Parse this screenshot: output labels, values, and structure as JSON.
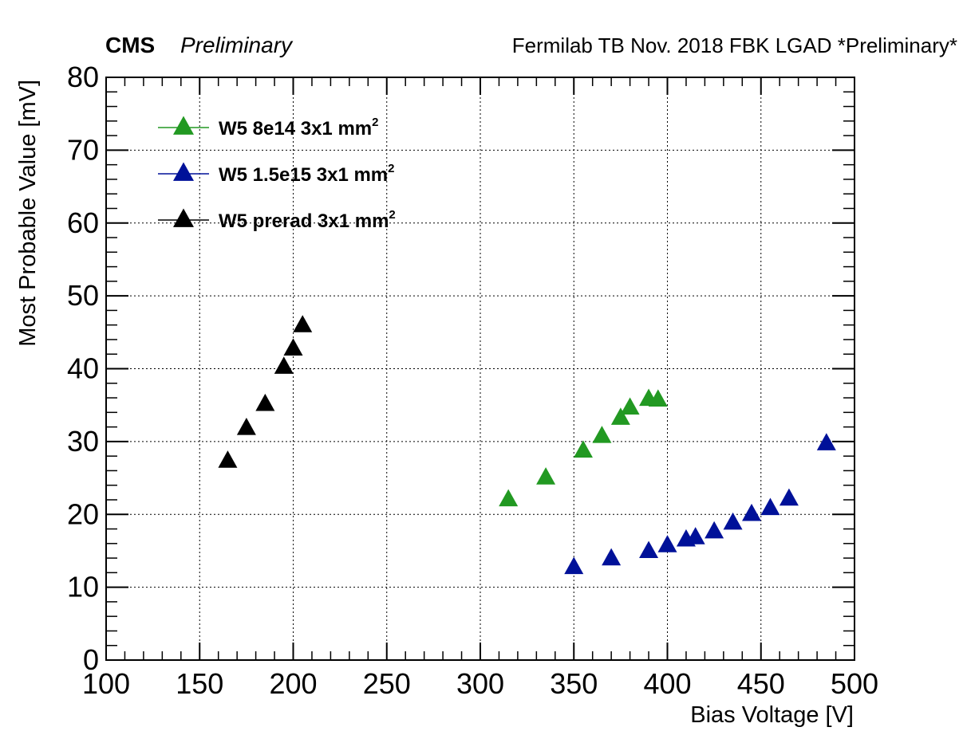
{
  "header": {
    "experiment": "CMS",
    "status": "Preliminary",
    "right_text": "Fermilab TB Nov. 2018 FBK LGAD *Preliminary*"
  },
  "colors": {
    "green": "#229922",
    "blue": "#001199",
    "black": "#000000",
    "grid": "#000000"
  },
  "chart_data": {
    "type": "scatter",
    "title": "",
    "xlabel": "Bias Voltage [V]",
    "ylabel": "Most Probable Value [mV]",
    "xlim": [
      100,
      500
    ],
    "ylim": [
      0,
      80
    ],
    "x_ticks": [
      100,
      150,
      200,
      250,
      300,
      350,
      400,
      450,
      500
    ],
    "y_ticks": [
      0,
      10,
      20,
      30,
      40,
      50,
      60,
      70,
      80
    ],
    "grid": true,
    "legend_position": "top-left",
    "marker": "triangle-up",
    "series": [
      {
        "name_main": "W5 8e14 3x1 mm",
        "name_sup": "2",
        "color": "#229922",
        "x": [
          315,
          335,
          355,
          365,
          375,
          380,
          390,
          395
        ],
        "y": [
          22,
          25,
          28.7,
          30.7,
          33.2,
          34.6,
          35.8,
          35.7
        ]
      },
      {
        "name_main": "W5 1.5e15 3x1 mm",
        "name_sup": "2",
        "color": "#001199",
        "x": [
          350,
          370,
          390,
          400,
          410,
          415,
          425,
          435,
          445,
          455,
          465,
          485
        ],
        "y": [
          12.7,
          13.9,
          14.9,
          15.7,
          16.5,
          16.8,
          17.6,
          18.8,
          20,
          20.8,
          22.1,
          29.7
        ]
      },
      {
        "name_main": "W5 prerad 3x1 mm",
        "name_sup": "2",
        "color": "#000000",
        "x": [
          165,
          175,
          185,
          195,
          200,
          205
        ],
        "y": [
          27.3,
          31.8,
          35.1,
          40.2,
          42.7,
          45.9
        ]
      }
    ]
  }
}
